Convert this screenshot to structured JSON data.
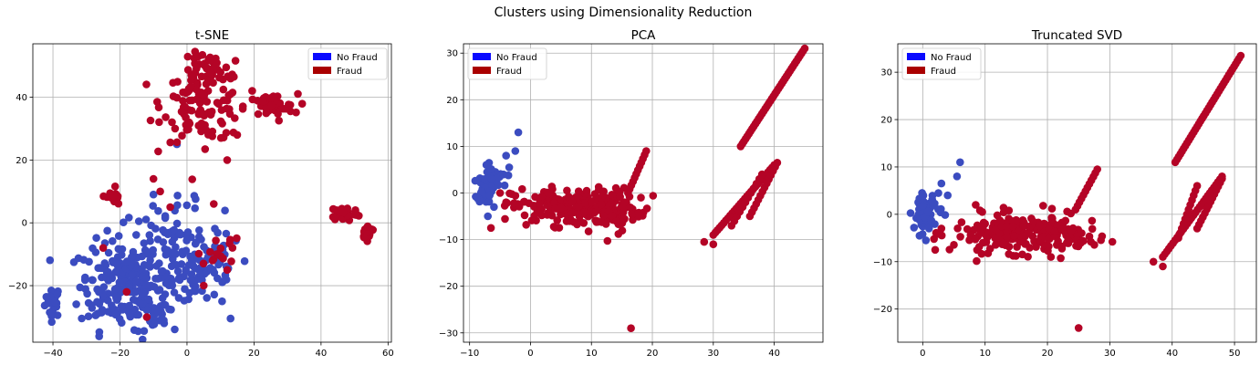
{
  "figure": {
    "suptitle": "Clusters using Dimensionality Reduction"
  },
  "colors": {
    "no_fraud_marker": "#3b4cc0",
    "fraud_marker": "#b40426",
    "legend_no_fraud": "#0a0aff",
    "legend_fraud": "#aa0000",
    "grid": "#b0b0b0"
  },
  "chart_data": [
    {
      "type": "scatter",
      "title": "t-SNE",
      "xlabel": "",
      "ylabel": "",
      "xlim": [
        -46,
        61
      ],
      "ylim": [
        -38,
        57
      ],
      "xticks": [
        -40,
        -20,
        0,
        20,
        40,
        60
      ],
      "yticks": [
        -20,
        0,
        20,
        40
      ],
      "grid": true,
      "legend": {
        "placement": "upper right",
        "entries": [
          "No Fraud",
          "Fraud"
        ]
      },
      "series": [
        {
          "name": "No Fraud",
          "clusters": [
            {
              "cx": -40,
              "cy": -25,
              "sx": 1.2,
              "sy": 2.5,
              "n": 25
            },
            {
              "cx": -20,
              "cy": -20,
              "sx": 6,
              "sy": 7,
              "n": 180
            },
            {
              "cx": -5,
              "cy": -10,
              "sx": 8,
              "sy": 8,
              "n": 120
            },
            {
              "cx": 5,
              "cy": -15,
              "sx": 6,
              "sy": 6,
              "n": 60
            },
            {
              "cx": -10,
              "cy": -30,
              "sx": 3,
              "sy": 3,
              "n": 25
            }
          ],
          "points": [
            [
              -10,
              9
            ],
            [
              -3,
              25
            ]
          ]
        },
        {
          "name": "Fraud",
          "clusters": [
            {
              "cx": 5,
              "cy": 38,
              "sx": 6,
              "sy": 6,
              "n": 120
            },
            {
              "cx": 5,
              "cy": 50,
              "sx": 3,
              "sy": 2,
              "n": 30
            },
            {
              "cx": 25,
              "cy": 37,
              "sx": 4,
              "sy": 2,
              "n": 40
            },
            {
              "cx": 47,
              "cy": 3,
              "sx": 2,
              "sy": 1.2,
              "n": 50
            },
            {
              "cx": 54,
              "cy": -3,
              "sx": 1,
              "sy": 1,
              "n": 25
            },
            {
              "cx": -22,
              "cy": 8,
              "sx": 1,
              "sy": 2,
              "n": 15
            },
            {
              "cx": 10,
              "cy": -8,
              "sx": 3,
              "sy": 3,
              "n": 15
            }
          ],
          "points": [
            [
              -10,
              14
            ],
            [
              -8,
              10
            ],
            [
              12,
              20
            ],
            [
              15,
              28
            ],
            [
              8,
              6
            ],
            [
              -5,
              5
            ],
            [
              -25,
              -8
            ],
            [
              -18,
              -22
            ],
            [
              -12,
              -30
            ],
            [
              5,
              -20
            ],
            [
              12,
              -15
            ]
          ]
        }
      ]
    },
    {
      "type": "scatter",
      "title": "PCA",
      "xlabel": "",
      "ylabel": "",
      "xlim": [
        -11,
        48
      ],
      "ylim": [
        -32,
        32
      ],
      "xticks": [
        -10,
        0,
        10,
        20,
        30,
        40
      ],
      "yticks": [
        -30,
        -20,
        -10,
        0,
        10,
        20,
        30
      ],
      "grid": true,
      "legend": {
        "placement": "upper left",
        "entries": [
          "No Fraud",
          "Fraud"
        ]
      },
      "series": [
        {
          "name": "No Fraud",
          "clusters": [
            {
              "cx": -7.5,
              "cy": 1,
              "sx": 0.6,
              "sy": 1.5,
              "n": 60
            },
            {
              "cx": -6,
              "cy": 3,
              "sx": 1,
              "sy": 2,
              "n": 15
            }
          ],
          "points": [
            [
              -2,
              13
            ],
            [
              -2.5,
              9
            ],
            [
              -4,
              8
            ],
            [
              -3.5,
              5.5
            ],
            [
              -7,
              -5
            ],
            [
              -6,
              -3
            ]
          ]
        },
        {
          "name": "Fraud",
          "clusters": [
            {
              "cx": 7,
              "cy": -3,
              "sx": 5,
              "sy": 2,
              "n": 200
            },
            {
              "cx": 14,
              "cy": -4,
              "sx": 3,
              "sy": 2,
              "n": 40
            }
          ],
          "lines": [
            {
              "x0": 16,
              "y0": 0,
              "x1": 19,
              "y1": 9,
              "n": 12
            },
            {
              "x0": 34.5,
              "y0": 10,
              "x1": 45,
              "y1": 31,
              "n": 40
            },
            {
              "x0": 30,
              "y0": -9,
              "x1": 40,
              "y1": 6,
              "n": 30
            },
            {
              "x0": 33,
              "y0": -7,
              "x1": 38,
              "y1": 4,
              "n": 12
            },
            {
              "x0": 36,
              "y0": -5,
              "x1": 40.5,
              "y1": 6.5,
              "n": 14
            }
          ],
          "points": [
            [
              16.5,
              -29
            ],
            [
              -6.5,
              -7.5
            ],
            [
              -5,
              0
            ],
            [
              -4,
              -2
            ],
            [
              28.5,
              -10.5
            ],
            [
              30,
              -11
            ]
          ]
        }
      ]
    },
    {
      "type": "scatter",
      "title": "Truncated SVD",
      "xlabel": "",
      "ylabel": "",
      "xlim": [
        -4,
        53.5
      ],
      "ylim": [
        -27,
        36
      ],
      "xticks": [
        0,
        10,
        20,
        30,
        40,
        50
      ],
      "yticks": [
        -20,
        -10,
        0,
        10,
        20,
        30
      ],
      "grid": true,
      "legend": {
        "placement": "upper left",
        "entries": [
          "No Fraud",
          "Fraud"
        ]
      },
      "series": [
        {
          "name": "No Fraud",
          "clusters": [
            {
              "cx": 0.3,
              "cy": 0,
              "sx": 0.6,
              "sy": 1.6,
              "n": 60
            },
            {
              "cx": 1.5,
              "cy": 2,
              "sx": 0.8,
              "sy": 2,
              "n": 15
            }
          ],
          "points": [
            [
              6,
              11
            ],
            [
              5.5,
              8
            ],
            [
              4,
              4
            ],
            [
              3,
              6.5
            ],
            [
              0.5,
              -5.5
            ],
            [
              1,
              -3
            ]
          ]
        },
        {
          "name": "Fraud",
          "clusters": [
            {
              "cx": 15,
              "cy": -4,
              "sx": 5,
              "sy": 2,
              "n": 200
            },
            {
              "cx": 23,
              "cy": -5,
              "sx": 2.5,
              "sy": 2,
              "n": 40
            }
          ],
          "lines": [
            {
              "x0": 24.5,
              "y0": 1,
              "x1": 28,
              "y1": 9.5,
              "n": 12
            },
            {
              "x0": 40.5,
              "y0": 11,
              "x1": 51,
              "y1": 33.5,
              "n": 40
            },
            {
              "x0": 38.5,
              "y0": -9,
              "x1": 48,
              "y1": 8,
              "n": 30
            },
            {
              "x0": 41,
              "y0": -5,
              "x1": 44,
              "y1": 6,
              "n": 12
            },
            {
              "x0": 44,
              "y0": -3,
              "x1": 48,
              "y1": 7.5,
              "n": 14
            }
          ],
          "points": [
            [
              25,
              -24
            ],
            [
              2,
              -7.5
            ],
            [
              2.5,
              -4
            ],
            [
              3,
              -3
            ],
            [
              37,
              -10
            ],
            [
              38.5,
              -11
            ],
            [
              8.5,
              2
            ]
          ]
        }
      ]
    }
  ]
}
